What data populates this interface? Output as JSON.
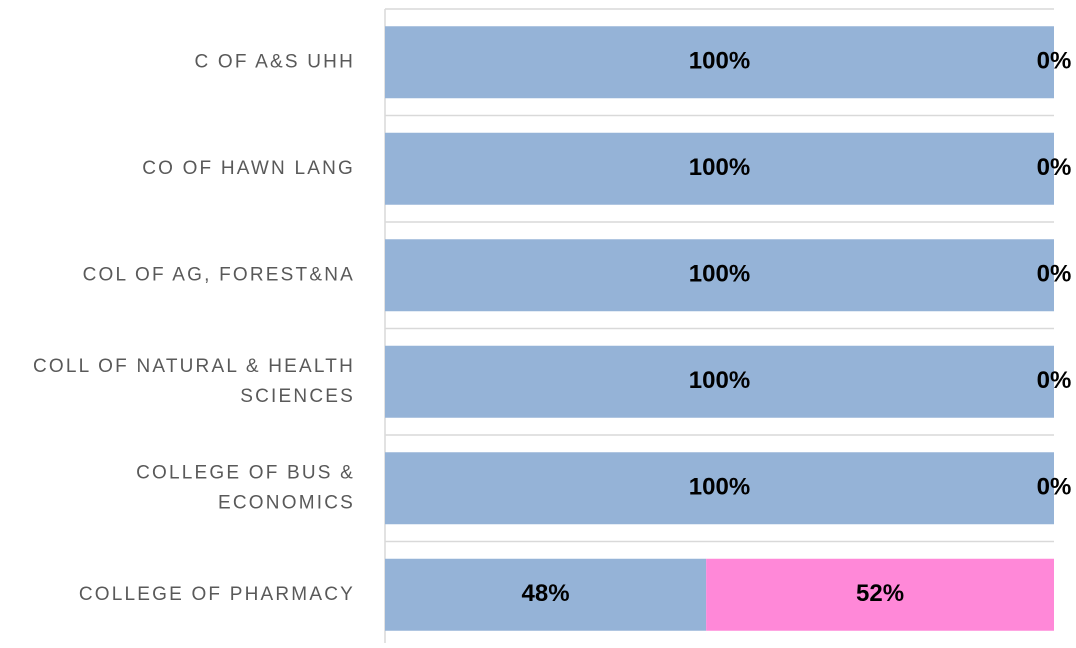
{
  "chart_data": {
    "type": "stacked-bar-horizontal",
    "categories": [
      "C OF A&S UHH",
      "CO OF HAWN LANG",
      "COL OF AG, FOREST&NA",
      "COLL OF NATURAL & HEALTH SCIENCES",
      "COLLEGE OF BUS & ECONOMICS",
      "COLLEGE OF PHARMACY"
    ],
    "series": [
      {
        "color": "#95b3d7",
        "values": [
          100,
          100,
          100,
          100,
          100,
          48
        ],
        "value_labels": [
          "100%",
          "100%",
          "100%",
          "100%",
          "100%",
          "48%"
        ]
      },
      {
        "color": "#ff88d8",
        "values": [
          0,
          0,
          0,
          0,
          0,
          52
        ],
        "value_labels": [
          "0%",
          "0%",
          "0%",
          "0%",
          "0%",
          "52%"
        ]
      }
    ],
    "xlim": [
      0,
      100
    ],
    "grid": true
  }
}
